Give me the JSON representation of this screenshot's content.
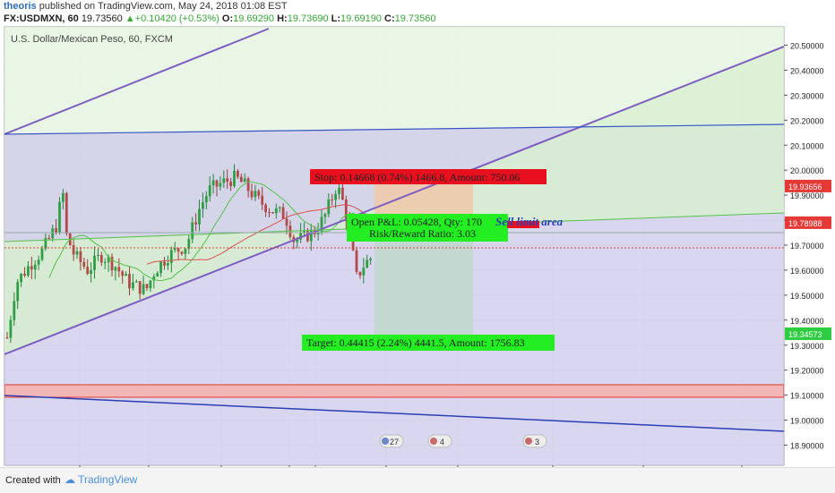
{
  "header": {
    "author": "theoris",
    "published": "published on TradingView.com, May 24, 2018 01:08 EST",
    "symbol": "FX:USDMXN, 60",
    "last": "19.73560",
    "change": "+0.10420 (+0.53%)",
    "open_label": "O:",
    "open": "19.69290",
    "high_label": "H:",
    "high": "19.73690",
    "low_label": "L:",
    "low": "19.69190",
    "close_label": "C:",
    "close": "19.73560"
  },
  "footer": {
    "created": "Created with",
    "brand": "TradingView"
  },
  "chart_data": {
    "type": "candlestick",
    "title": "U.S. Dollar/Mexican Peso, 60, FXCM",
    "ylim": [
      18.85,
      20.55
    ],
    "y_ticks": [
      "20.50000",
      "20.40000",
      "20.30000",
      "20.20000",
      "20.10000",
      "20.00000",
      "19.90000",
      "19.80000",
      "19.70000",
      "19.60000",
      "19.50000",
      "19.40000",
      "19.30000",
      "19.20000",
      "19.10000",
      "19.00000",
      "18.90000"
    ],
    "y_values": [
      20.5,
      20.4,
      20.3,
      20.2,
      20.1,
      20.0,
      19.9,
      19.8,
      19.7,
      19.6,
      19.5,
      19.4,
      19.3,
      19.2,
      19.1,
      19.0,
      18.9
    ],
    "x_ticks": [
      "16",
      "12:00",
      "21",
      "12:00",
      "23",
      "12:00",
      "28",
      "30",
      "Jun",
      "5"
    ],
    "price_labels": [
      {
        "text": "19.93656",
        "value": 19.93656,
        "color": "#e53935"
      },
      {
        "text": "19.78988",
        "value": 19.78988,
        "color": "#e53935"
      },
      {
        "text": "19.34573",
        "value": 19.34573,
        "color": "#2ecc40"
      }
    ],
    "position": {
      "stop_label": "Stop: 0.14668 (0.74%) 1466.8, Amount: 750.06",
      "pnl_label": "Open P&L: 0.05428, Qty: 170",
      "rr_label": "Risk/Reward Ratio: 3.03",
      "target_label": "Target: 0.44415 (2.24%) 4441.5, Amount: 1756.83",
      "entry": 19.78988,
      "stop": 19.93656,
      "target": 19.34573
    },
    "annotation": "Sell limit area",
    "event_badges": [
      "27",
      "4",
      "3"
    ]
  }
}
